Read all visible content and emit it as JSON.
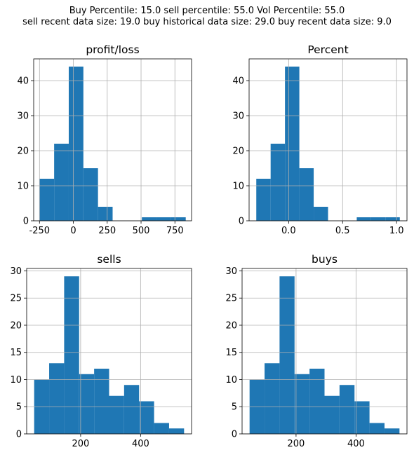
{
  "suptitle": {
    "line1": "Buy Percentile: 15.0 sell percentile: 55.0 Vol Percentile: 55.0",
    "line2": "sell recent data size: 19.0 buy historical data size: 29.0 buy recent data size: 9.0"
  },
  "colors": {
    "bar": "#1f77b4",
    "grid": "#b0b0b0",
    "axis": "#000000"
  },
  "chart_data": [
    {
      "type": "bar",
      "title": "profit/loss",
      "bin_edges": [
        -250,
        -142,
        -34,
        74,
        182,
        290,
        398,
        506,
        614,
        722,
        830
      ],
      "values": [
        12,
        22,
        44,
        15,
        4,
        0,
        0,
        1,
        1,
        1
      ],
      "xlim": [
        -293,
        873
      ],
      "ylim": [
        0,
        46.2
      ],
      "xticks": [
        -250,
        0,
        250,
        500,
        750
      ],
      "yticks": [
        0,
        10,
        20,
        30,
        40
      ],
      "grid": true
    },
    {
      "type": "bar",
      "title": "Percent",
      "bin_edges": [
        -0.3,
        -0.167,
        -0.034,
        0.099,
        0.232,
        0.365,
        0.498,
        0.631,
        0.764,
        0.897,
        1.03
      ],
      "values": [
        12,
        22,
        44,
        15,
        4,
        0,
        0,
        1,
        1,
        1
      ],
      "xlim": [
        -0.3665,
        1.0965
      ],
      "ylim": [
        0,
        46.2
      ],
      "xticks": [
        0.0,
        0.5,
        1.0
      ],
      "xtick_labels": [
        "0.0",
        "0.5",
        "1.0"
      ],
      "yticks": [
        0,
        10,
        20,
        30,
        40
      ],
      "grid": true
    },
    {
      "type": "bar",
      "title": "sells",
      "bin_edges": [
        45,
        95,
        145,
        195,
        245,
        295,
        345,
        395,
        445,
        495,
        545
      ],
      "values": [
        10,
        13,
        29,
        11,
        12,
        7,
        9,
        6,
        2,
        1
      ],
      "xlim": [
        20,
        570
      ],
      "ylim": [
        0,
        30.45
      ],
      "xticks": [
        200,
        400
      ],
      "yticks": [
        0,
        5,
        10,
        15,
        20,
        25,
        30
      ],
      "grid": true
    },
    {
      "type": "bar",
      "title": "buys",
      "bin_edges": [
        45,
        95,
        145,
        195,
        245,
        295,
        345,
        395,
        445,
        495,
        545
      ],
      "values": [
        10,
        13,
        29,
        11,
        12,
        7,
        9,
        6,
        2,
        1
      ],
      "xlim": [
        20,
        570
      ],
      "ylim": [
        0,
        30.45
      ],
      "xticks": [
        200,
        400
      ],
      "yticks": [
        0,
        5,
        10,
        15,
        20,
        25,
        30
      ],
      "grid": true
    }
  ]
}
